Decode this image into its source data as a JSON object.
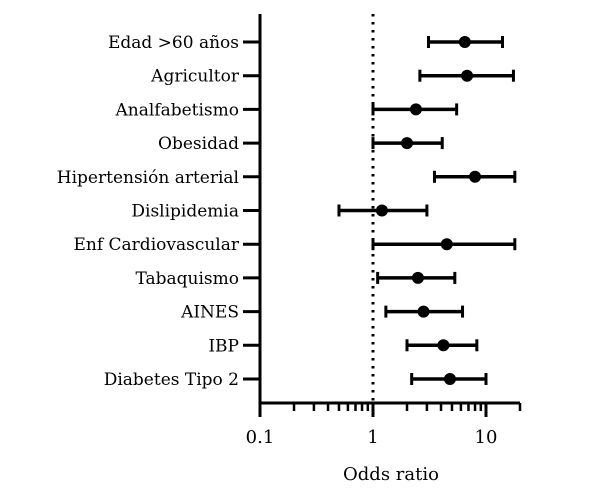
{
  "chart_data": {
    "type": "forest",
    "xscale": "log",
    "xlim": [
      0.1,
      20
    ],
    "xlabel": "Odds ratio",
    "xticks": [
      0.1,
      1,
      10
    ],
    "xtick_labels": [
      "0.1",
      "1",
      "10"
    ],
    "reference_line": 1,
    "categories": [
      "Edad >60 años",
      "Agricultor",
      "Analfabetismo",
      "Obesidad",
      "Hipertensión arterial",
      "Dislipidemia",
      "Enf Cardiovascular",
      "Tabaquismo",
      "AINES",
      "IBP",
      "Diabetes Tipo 2"
    ],
    "or": [
      6.5,
      6.8,
      2.4,
      2.0,
      8.0,
      1.2,
      4.5,
      2.5,
      2.8,
      4.2,
      4.8
    ],
    "lower": [
      3.1,
      2.6,
      1.0,
      1.0,
      3.5,
      0.5,
      1.0,
      1.1,
      1.3,
      2.0,
      2.2
    ],
    "upper": [
      14.0,
      17.5,
      5.5,
      4.1,
      18.0,
      3.0,
      18.0,
      5.3,
      6.2,
      8.3,
      10.0
    ]
  }
}
